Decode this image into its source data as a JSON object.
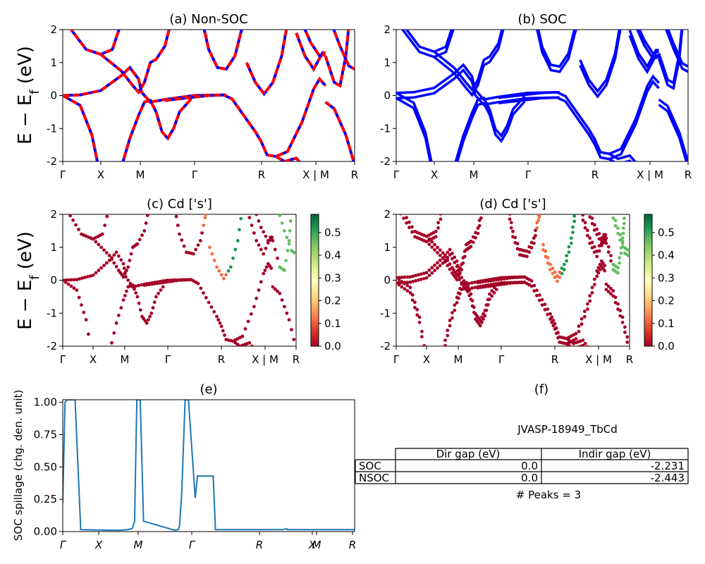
{
  "figure": {
    "table_title": "JVASP-18949_TbCd",
    "peaks_text": "# Peaks = 3",
    "band_ylabel": "E − E",
    "band_ylabel_sub": "f",
    "band_ylabel_unit": " (eV)",
    "spillage_ylabel": "SOC spillage (chg. den. unit)",
    "kpath_labels": [
      "Γ",
      "X",
      "M",
      "Γ",
      "R",
      "X | M",
      "R"
    ],
    "colors": {
      "blue": "#0000ff",
      "red": "#ff0000",
      "spill": "#1f77b4"
    }
  },
  "table": {
    "headers": [
      "",
      "Dir gap (eV)",
      "Indir gap (eV)"
    ],
    "rows": [
      {
        "label": "SOC",
        "dir": "0.0",
        "indir": "-2.231"
      },
      {
        "label": "NSOC",
        "dir": "0.0",
        "indir": "-2.443"
      }
    ]
  },
  "chart_data": [
    {
      "id": "a",
      "type": "line",
      "title": "(a) Non-SOC",
      "ylim": [
        -2,
        2
      ],
      "yticks": [
        -2,
        -1,
        0,
        1,
        2
      ],
      "xticks": [
        "Γ",
        "X",
        "M",
        "Γ",
        "R",
        "X | M",
        "R"
      ],
      "style": "blue solid with red dashed overlay"
    },
    {
      "id": "b",
      "type": "line",
      "title": "(b) SOC",
      "ylim": [
        -2,
        2
      ],
      "yticks": [
        -2,
        -1,
        0,
        1,
        2
      ],
      "xticks": [
        "Γ",
        "X",
        "M",
        "Γ",
        "R",
        "X | M",
        "R"
      ]
    },
    {
      "id": "c",
      "type": "scatter",
      "title": "(c)  Cd ['s']",
      "ylim": [
        -2,
        2
      ],
      "yticks": [
        -2,
        -1,
        0,
        1,
        2
      ],
      "xticks": [
        "Γ",
        "X",
        "M",
        "Γ",
        "R",
        "X | M",
        "R"
      ],
      "colorbar": {
        "min": 0.0,
        "max": 0.58,
        "cmap": "RdYlGn",
        "ticks": [
          "0.0",
          "0.1",
          "0.2",
          "0.3",
          "0.4",
          "0.5"
        ]
      }
    },
    {
      "id": "d",
      "type": "scatter",
      "title": "(d) Cd ['s']",
      "ylim": [
        -2,
        2
      ],
      "yticks": [
        -2,
        -1,
        0,
        1,
        2
      ],
      "xticks": [
        "Γ",
        "X",
        "M",
        "Γ",
        "R",
        "X | M",
        "R"
      ],
      "colorbar": {
        "min": 0.0,
        "max": 0.58,
        "cmap": "RdYlGn",
        "ticks": [
          "0.0",
          "0.1",
          "0.2",
          "0.3",
          "0.4",
          "0.5"
        ]
      }
    },
    {
      "id": "e",
      "type": "line",
      "title": "(e)",
      "ylabel": "SOC spillage (chg. den. unit)",
      "ylim": [
        0,
        1.02
      ],
      "yticks": [
        "0.00",
        "0.25",
        "0.50",
        "0.75",
        "1.00"
      ],
      "xticks": [
        "Γ",
        "X",
        "M",
        "Γ",
        "R",
        "X",
        "M",
        "R"
      ],
      "x": [
        0.0,
        0.01,
        0.02,
        0.045,
        0.055,
        0.08,
        0.25,
        0.29,
        0.31,
        0.32,
        0.33,
        0.345,
        0.36,
        0.5,
        0.515,
        0.52,
        0.53,
        0.545,
        0.56,
        0.59,
        0.6,
        0.605,
        0.655,
        0.67,
        0.68,
        0.71,
        0.9,
        0.98,
        0.99,
        1.0,
        1.0,
        1.01,
        1.02,
        1.03,
        1.05,
        1.07,
        1.25,
        1.3
      ],
      "y": [
        0.22,
        1.0,
        1.02,
        1.02,
        1.02,
        0.015,
        0.01,
        0.015,
        0.025,
        0.08,
        1.02,
        1.02,
        0.08,
        0.01,
        0.015,
        0.04,
        0.3,
        1.02,
        1.02,
        0.26,
        0.43,
        0.43,
        0.43,
        0.43,
        0.015,
        0.015,
        0.015,
        0.015,
        0.02,
        0.02,
        0.015,
        0.015,
        0.015,
        0.015,
        0.015,
        0.015,
        0.015,
        0.015
      ]
    },
    {
      "id": "f",
      "type": "table",
      "title": "(f)"
    }
  ]
}
